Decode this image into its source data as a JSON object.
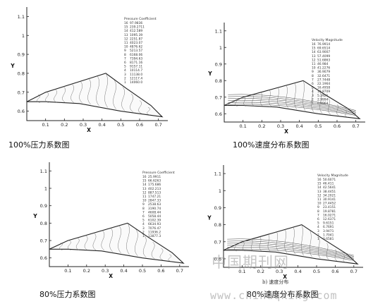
{
  "chart_data": [
    {
      "type": "contour",
      "caption": "100%压力系数图",
      "xlabel": "X",
      "ylabel": "Y",
      "xticks": [
        "0.1",
        "0.2",
        "0.3",
        "0.4",
        "0.5",
        "0.6",
        "0.7"
      ],
      "yticks": [
        "0.6",
        "0.7",
        "0.8",
        "0.9",
        "1",
        "1.1"
      ],
      "xlim": [
        0.0,
        0.75
      ],
      "ylim": [
        0.55,
        1.15
      ],
      "outline": [
        [
          0.0,
          0.65
        ],
        [
          0.1,
          0.7
        ],
        [
          0.42,
          0.8
        ],
        [
          0.53,
          0.72
        ],
        [
          0.66,
          0.63
        ],
        [
          0.72,
          0.57
        ],
        [
          0.5,
          0.6
        ],
        [
          0.28,
          0.64
        ],
        [
          0.1,
          0.65
        ],
        [
          0.0,
          0.65
        ]
      ],
      "legend_title": "Pressure Coefficient",
      "legend_levels": [
        "16",
        "15",
        "14",
        "13",
        "12",
        "11",
        "10",
        "9",
        "8",
        "7",
        "6",
        "5",
        "4",
        "3",
        "2",
        "1"
      ],
      "legend_values": [
        "97.9836",
        "239.2711",
        "412.589",
        "1095.39",
        "2251.87",
        "4023.07",
        "4876.62",
        "5213.57",
        "6168.06",
        "7394.63",
        "8171.16",
        "9157.11",
        "10114.7",
        "11138.0",
        "12117.4",
        "14060.0"
      ]
    },
    {
      "type": "contour",
      "caption": "100%速度分布系数图",
      "xlabel": "X",
      "ylabel": "Y",
      "xticks": [
        "0.1",
        "0.2",
        "0.3",
        "0.4",
        "0.5",
        "0.6",
        "0.7"
      ],
      "yticks": [
        "0.6",
        "0.7",
        "0.8",
        "0.9",
        "1",
        "1.1"
      ],
      "xlim": [
        0.0,
        0.75
      ],
      "ylim": [
        0.55,
        1.15
      ],
      "outline": [
        [
          0.0,
          0.65
        ],
        [
          0.1,
          0.7
        ],
        [
          0.42,
          0.8
        ],
        [
          0.53,
          0.72
        ],
        [
          0.66,
          0.63
        ],
        [
          0.72,
          0.57
        ],
        [
          0.5,
          0.6
        ],
        [
          0.28,
          0.64
        ],
        [
          0.1,
          0.65
        ],
        [
          0.0,
          0.65
        ]
      ],
      "legend_title": "Velocity Magnitude",
      "legend_levels": [
        "16",
        "15",
        "14",
        "13",
        "12",
        "11",
        "10",
        "9",
        "8",
        "7",
        "6",
        "5",
        "4",
        "3",
        "2",
        "1"
      ],
      "legend_values": [
        "76.9914",
        "69.6514",
        "63.9007",
        "57.4099",
        "51.6863",
        "46.984",
        "41.2276",
        "36.9079",
        "32.6471",
        "27.7448",
        "22.1964",
        "16.4958",
        "10.8709",
        "5.2921",
        "2.9994",
        "0.9964"
      ]
    },
    {
      "type": "contour",
      "caption": "80%压力系数图",
      "xlabel": "X",
      "ylabel": "Y",
      "xticks": [
        "0.1",
        "0.2",
        "0.3",
        "0.4",
        "0.5",
        "0.6",
        "0.7"
      ],
      "yticks": [
        "0.6",
        "0.7",
        "0.8",
        "0.9",
        "1",
        "1.1"
      ],
      "xlim": [
        0.0,
        0.75
      ],
      "ylim": [
        0.55,
        1.15
      ],
      "outline": [
        [
          0.0,
          0.65
        ],
        [
          0.1,
          0.7
        ],
        [
          0.42,
          0.8
        ],
        [
          0.53,
          0.72
        ],
        [
          0.66,
          0.63
        ],
        [
          0.72,
          0.57
        ],
        [
          0.5,
          0.6
        ],
        [
          0.28,
          0.64
        ],
        [
          0.1,
          0.65
        ],
        [
          0.0,
          0.65
        ]
      ],
      "legend_title": "Pressure Coefficient",
      "legend_levels": [
        "16",
        "15",
        "14",
        "13",
        "12",
        "11",
        "10",
        "9",
        "8",
        "7",
        "6",
        "5",
        "4",
        "3",
        "2",
        "1"
      ],
      "legend_values": [
        "25.9911",
        "66.6263",
        "175.686",
        "402.213",
        "887.513",
        "1747.21",
        "2847.33",
        "2538.63",
        "3190.74",
        "4608.44",
        "5058.44",
        "6102.39",
        "6634.93",
        "7076.47",
        "11936.2",
        "13877.3"
      ]
    },
    {
      "type": "contour",
      "caption": "80%速度分布系数图",
      "subcaption": "b) 速度分布",
      "xlabel": "X",
      "ylabel": "Y",
      "xticks": [
        "0.1",
        "0.2",
        "0.3",
        "0.4",
        "0.5",
        "0.6",
        "0.7"
      ],
      "yticks": [
        "0.6",
        "0.7",
        "0.8",
        "0.9",
        "1",
        "1.1"
      ],
      "xlim": [
        0.0,
        0.75
      ],
      "ylim": [
        0.55,
        1.15
      ],
      "outline": [
        [
          0.0,
          0.65
        ],
        [
          0.1,
          0.7
        ],
        [
          0.42,
          0.8
        ],
        [
          0.53,
          0.72
        ],
        [
          0.66,
          0.63
        ],
        [
          0.72,
          0.57
        ],
        [
          0.5,
          0.6
        ],
        [
          0.28,
          0.64
        ],
        [
          0.1,
          0.65
        ],
        [
          0.0,
          0.65
        ]
      ],
      "legend_title": "Velocity Magnitude",
      "legend_levels": [
        "16",
        "15",
        "14",
        "13",
        "12",
        "11",
        "10",
        "9",
        "8",
        "7",
        "6",
        "5",
        "4",
        "3",
        "2",
        "1"
      ],
      "legend_values": [
        "50.6071",
        "46.411",
        "42.5641",
        "38.4451",
        "34.2021",
        "30.9141",
        "27.4452",
        "23.4151",
        "19.8781",
        "16.0271",
        "12.6371",
        "9.6151",
        "6.7691",
        "3.9471",
        "1.7041",
        "0.6581"
      ]
    }
  ],
  "watermark": {
    "site_cn": "中国期刊网",
    "url": "www.chinaqking.com"
  }
}
